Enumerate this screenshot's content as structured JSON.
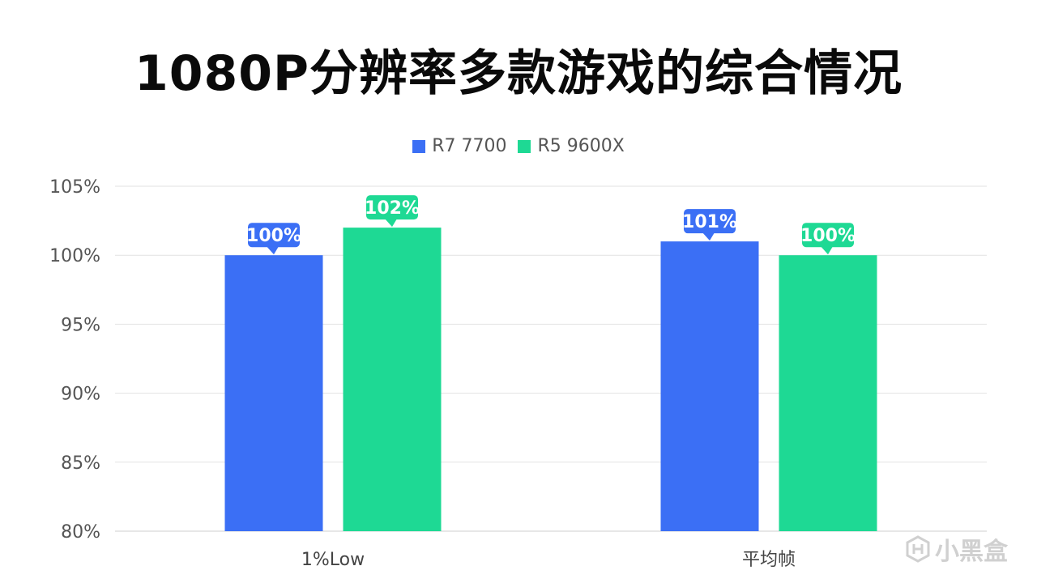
{
  "chart_data": {
    "type": "bar",
    "title": "1080P分辨率多款游戏的综合情况",
    "categories": [
      "1%Low",
      "平均帧"
    ],
    "series": [
      {
        "name": "R7 7700",
        "values": [
          100,
          101
        ],
        "labels": [
          "100%",
          "101%"
        ],
        "color": "#3b6ff5"
      },
      {
        "name": "R5 9600X",
        "values": [
          102,
          100
        ],
        "labels": [
          "102%",
          "100%"
        ],
        "color": "#1ed994"
      }
    ],
    "yticks": [
      "80%",
      "85%",
      "90%",
      "95%",
      "100%",
      "105%"
    ],
    "ylim": [
      80,
      105
    ],
    "grid": true,
    "legend_position": "top-center"
  },
  "watermark": {
    "text": "小黑盒"
  }
}
